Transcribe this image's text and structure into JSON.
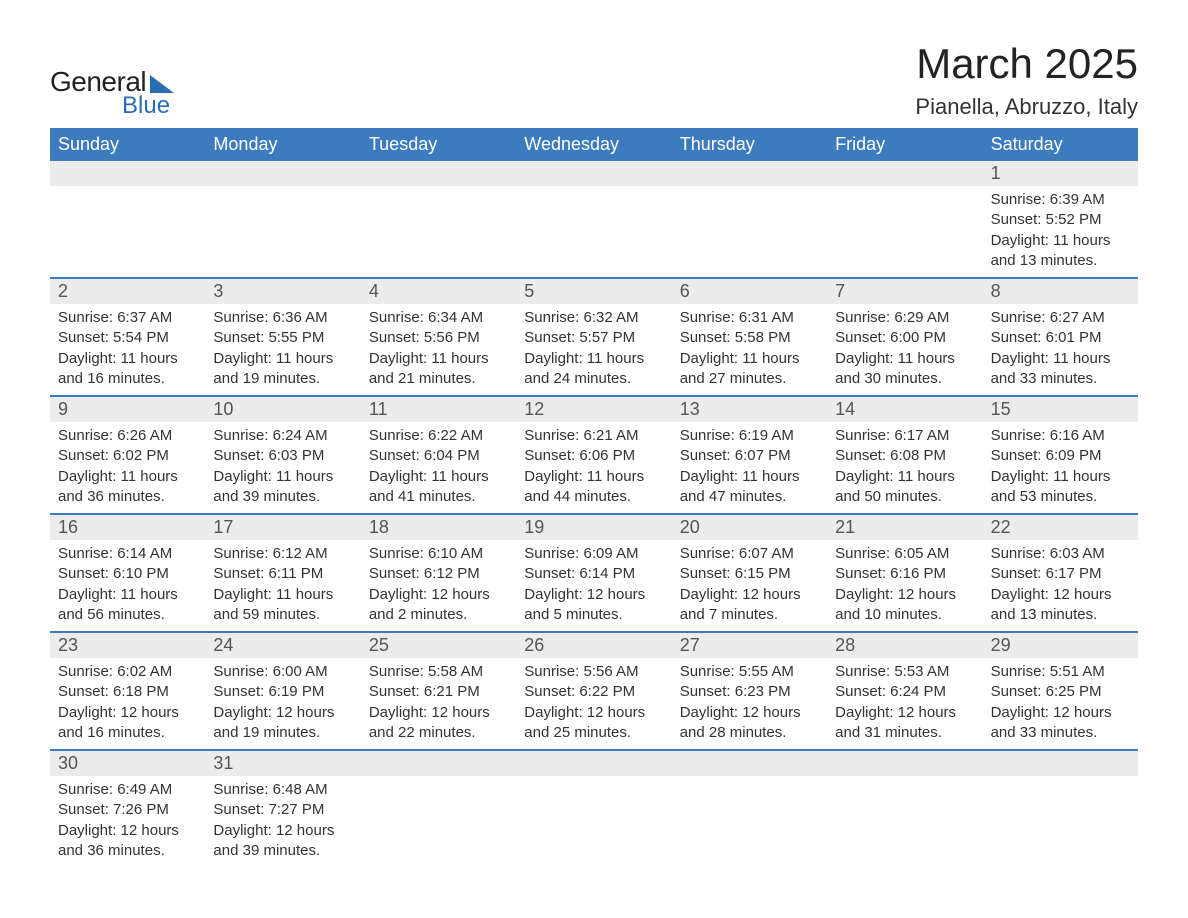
{
  "logo": {
    "word1": "General",
    "word2": "Blue"
  },
  "title": "March 2025",
  "location": "Pianella, Abruzzo, Italy",
  "colors": {
    "header_bg": "#3d7bbf",
    "header_text": "#ffffff",
    "daynum_bg": "#ececec",
    "row_divider": "#3d7bbf",
    "brand_blue": "#2a6db5",
    "text": "#333333",
    "background": "#ffffff"
  },
  "typography": {
    "title_fontsize": 42,
    "location_fontsize": 22,
    "dow_fontsize": 18,
    "daynum_fontsize": 18,
    "body_fontsize": 15
  },
  "days_of_week": [
    "Sunday",
    "Monday",
    "Tuesday",
    "Wednesday",
    "Thursday",
    "Friday",
    "Saturday"
  ],
  "weeks": [
    [
      {
        "n": "",
        "lines": []
      },
      {
        "n": "",
        "lines": []
      },
      {
        "n": "",
        "lines": []
      },
      {
        "n": "",
        "lines": []
      },
      {
        "n": "",
        "lines": []
      },
      {
        "n": "",
        "lines": []
      },
      {
        "n": "1",
        "lines": [
          "Sunrise: 6:39 AM",
          "Sunset: 5:52 PM",
          "Daylight: 11 hours and 13 minutes."
        ]
      }
    ],
    [
      {
        "n": "2",
        "lines": [
          "Sunrise: 6:37 AM",
          "Sunset: 5:54 PM",
          "Daylight: 11 hours and 16 minutes."
        ]
      },
      {
        "n": "3",
        "lines": [
          "Sunrise: 6:36 AM",
          "Sunset: 5:55 PM",
          "Daylight: 11 hours and 19 minutes."
        ]
      },
      {
        "n": "4",
        "lines": [
          "Sunrise: 6:34 AM",
          "Sunset: 5:56 PM",
          "Daylight: 11 hours and 21 minutes."
        ]
      },
      {
        "n": "5",
        "lines": [
          "Sunrise: 6:32 AM",
          "Sunset: 5:57 PM",
          "Daylight: 11 hours and 24 minutes."
        ]
      },
      {
        "n": "6",
        "lines": [
          "Sunrise: 6:31 AM",
          "Sunset: 5:58 PM",
          "Daylight: 11 hours and 27 minutes."
        ]
      },
      {
        "n": "7",
        "lines": [
          "Sunrise: 6:29 AM",
          "Sunset: 6:00 PM",
          "Daylight: 11 hours and 30 minutes."
        ]
      },
      {
        "n": "8",
        "lines": [
          "Sunrise: 6:27 AM",
          "Sunset: 6:01 PM",
          "Daylight: 11 hours and 33 minutes."
        ]
      }
    ],
    [
      {
        "n": "9",
        "lines": [
          "Sunrise: 6:26 AM",
          "Sunset: 6:02 PM",
          "Daylight: 11 hours and 36 minutes."
        ]
      },
      {
        "n": "10",
        "lines": [
          "Sunrise: 6:24 AM",
          "Sunset: 6:03 PM",
          "Daylight: 11 hours and 39 minutes."
        ]
      },
      {
        "n": "11",
        "lines": [
          "Sunrise: 6:22 AM",
          "Sunset: 6:04 PM",
          "Daylight: 11 hours and 41 minutes."
        ]
      },
      {
        "n": "12",
        "lines": [
          "Sunrise: 6:21 AM",
          "Sunset: 6:06 PM",
          "Daylight: 11 hours and 44 minutes."
        ]
      },
      {
        "n": "13",
        "lines": [
          "Sunrise: 6:19 AM",
          "Sunset: 6:07 PM",
          "Daylight: 11 hours and 47 minutes."
        ]
      },
      {
        "n": "14",
        "lines": [
          "Sunrise: 6:17 AM",
          "Sunset: 6:08 PM",
          "Daylight: 11 hours and 50 minutes."
        ]
      },
      {
        "n": "15",
        "lines": [
          "Sunrise: 6:16 AM",
          "Sunset: 6:09 PM",
          "Daylight: 11 hours and 53 minutes."
        ]
      }
    ],
    [
      {
        "n": "16",
        "lines": [
          "Sunrise: 6:14 AM",
          "Sunset: 6:10 PM",
          "Daylight: 11 hours and 56 minutes."
        ]
      },
      {
        "n": "17",
        "lines": [
          "Sunrise: 6:12 AM",
          "Sunset: 6:11 PM",
          "Daylight: 11 hours and 59 minutes."
        ]
      },
      {
        "n": "18",
        "lines": [
          "Sunrise: 6:10 AM",
          "Sunset: 6:12 PM",
          "Daylight: 12 hours and 2 minutes."
        ]
      },
      {
        "n": "19",
        "lines": [
          "Sunrise: 6:09 AM",
          "Sunset: 6:14 PM",
          "Daylight: 12 hours and 5 minutes."
        ]
      },
      {
        "n": "20",
        "lines": [
          "Sunrise: 6:07 AM",
          "Sunset: 6:15 PM",
          "Daylight: 12 hours and 7 minutes."
        ]
      },
      {
        "n": "21",
        "lines": [
          "Sunrise: 6:05 AM",
          "Sunset: 6:16 PM",
          "Daylight: 12 hours and 10 minutes."
        ]
      },
      {
        "n": "22",
        "lines": [
          "Sunrise: 6:03 AM",
          "Sunset: 6:17 PM",
          "Daylight: 12 hours and 13 minutes."
        ]
      }
    ],
    [
      {
        "n": "23",
        "lines": [
          "Sunrise: 6:02 AM",
          "Sunset: 6:18 PM",
          "Daylight: 12 hours and 16 minutes."
        ]
      },
      {
        "n": "24",
        "lines": [
          "Sunrise: 6:00 AM",
          "Sunset: 6:19 PM",
          "Daylight: 12 hours and 19 minutes."
        ]
      },
      {
        "n": "25",
        "lines": [
          "Sunrise: 5:58 AM",
          "Sunset: 6:21 PM",
          "Daylight: 12 hours and 22 minutes."
        ]
      },
      {
        "n": "26",
        "lines": [
          "Sunrise: 5:56 AM",
          "Sunset: 6:22 PM",
          "Daylight: 12 hours and 25 minutes."
        ]
      },
      {
        "n": "27",
        "lines": [
          "Sunrise: 5:55 AM",
          "Sunset: 6:23 PM",
          "Daylight: 12 hours and 28 minutes."
        ]
      },
      {
        "n": "28",
        "lines": [
          "Sunrise: 5:53 AM",
          "Sunset: 6:24 PM",
          "Daylight: 12 hours and 31 minutes."
        ]
      },
      {
        "n": "29",
        "lines": [
          "Sunrise: 5:51 AM",
          "Sunset: 6:25 PM",
          "Daylight: 12 hours and 33 minutes."
        ]
      }
    ],
    [
      {
        "n": "30",
        "lines": [
          "Sunrise: 6:49 AM",
          "Sunset: 7:26 PM",
          "Daylight: 12 hours and 36 minutes."
        ]
      },
      {
        "n": "31",
        "lines": [
          "Sunrise: 6:48 AM",
          "Sunset: 7:27 PM",
          "Daylight: 12 hours and 39 minutes."
        ]
      },
      {
        "n": "",
        "lines": []
      },
      {
        "n": "",
        "lines": []
      },
      {
        "n": "",
        "lines": []
      },
      {
        "n": "",
        "lines": []
      },
      {
        "n": "",
        "lines": []
      }
    ]
  ]
}
